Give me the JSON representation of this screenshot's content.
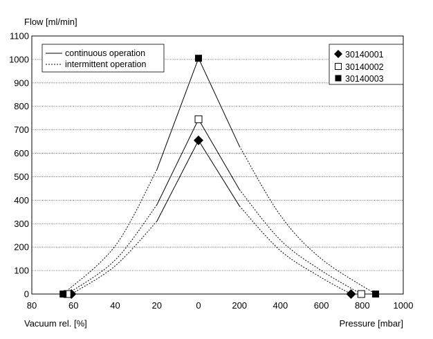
{
  "chart_data": {
    "type": "line",
    "ylabel": "Flow [ml/min]",
    "xlabel_left": "Vacuum rel. [%]",
    "xlabel_right": "Pressure [mbar]",
    "ylim": [
      0,
      1100
    ],
    "yticks": [
      "0",
      "100",
      "200",
      "300",
      "400",
      "500",
      "600",
      "700",
      "800",
      "900",
      "1000",
      "1100"
    ],
    "vacuum_ticks": [
      "80",
      "60",
      "40",
      "20",
      "0"
    ],
    "pressure_ticks": [
      "200",
      "400",
      "600",
      "800",
      "1000"
    ],
    "grid": "horizontal-dotted",
    "line_legend": {
      "position": "top-left",
      "items": [
        {
          "label": "continuous operation",
          "style": "solid"
        },
        {
          "label": "intermittent operation",
          "style": "dashed"
        }
      ]
    },
    "marker_legend": {
      "position": "top-right",
      "items": [
        {
          "label": "30140001",
          "marker": "diamond-filled"
        },
        {
          "label": "30140002",
          "marker": "square-open"
        },
        {
          "label": "30140003",
          "marker": "square-filled"
        }
      ]
    },
    "series": [
      {
        "name": "30140001",
        "marker": "diamond-filled",
        "peak_flow": 655,
        "max_vacuum_pct": 61,
        "max_pressure_mbar": 745,
        "vacuum_continuous": [
          [
            0,
            655
          ],
          [
            20,
            310
          ]
        ],
        "vacuum_intermittent": [
          [
            20,
            310
          ],
          [
            40,
            120
          ],
          [
            61,
            0
          ]
        ],
        "pressure_continuous": [
          [
            0,
            655
          ],
          [
            200,
            375
          ]
        ],
        "pressure_intermittent": [
          [
            200,
            375
          ],
          [
            400,
            185
          ],
          [
            600,
            70
          ],
          [
            745,
            0
          ]
        ]
      },
      {
        "name": "30140002",
        "marker": "square-open",
        "peak_flow": 745,
        "max_vacuum_pct": 63,
        "max_pressure_mbar": 795,
        "vacuum_continuous": [
          [
            0,
            745
          ],
          [
            20,
            380
          ]
        ],
        "vacuum_intermittent": [
          [
            20,
            380
          ],
          [
            40,
            145
          ],
          [
            63,
            0
          ]
        ],
        "pressure_continuous": [
          [
            0,
            745
          ],
          [
            200,
            445
          ]
        ],
        "pressure_intermittent": [
          [
            200,
            445
          ],
          [
            400,
            230
          ],
          [
            600,
            100
          ],
          [
            795,
            0
          ]
        ]
      },
      {
        "name": "30140003",
        "marker": "square-filled",
        "peak_flow": 1005,
        "max_vacuum_pct": 65,
        "max_pressure_mbar": 865,
        "vacuum_continuous": [
          [
            0,
            1005
          ],
          [
            20,
            530
          ]
        ],
        "vacuum_intermittent": [
          [
            20,
            530
          ],
          [
            40,
            205
          ],
          [
            65,
            0
          ]
        ],
        "pressure_continuous": [
          [
            0,
            1005
          ],
          [
            200,
            630
          ]
        ],
        "pressure_intermittent": [
          [
            200,
            630
          ],
          [
            400,
            335
          ],
          [
            600,
            150
          ],
          [
            865,
            0
          ]
        ]
      }
    ]
  }
}
